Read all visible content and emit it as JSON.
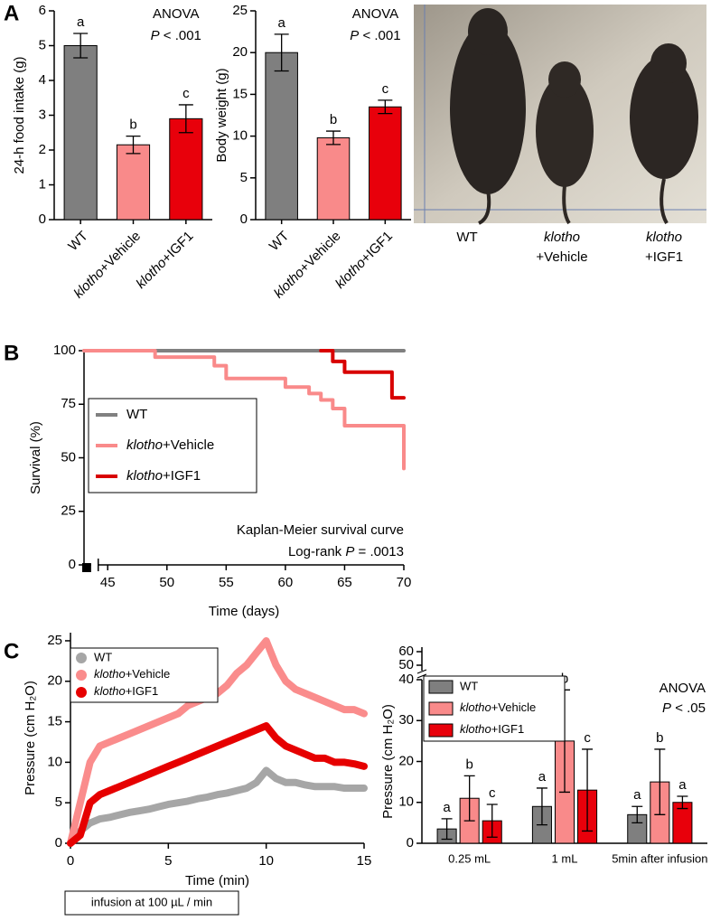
{
  "panel_labels": [
    "A",
    "B",
    "C"
  ],
  "photo": {
    "labels": [
      [
        "WT"
      ],
      [
        "klotho",
        "+Vehicle"
      ],
      [
        "klotho",
        "+IGF1"
      ]
    ]
  },
  "chart_data": [
    {
      "type": "bar",
      "y_label": "24-h food intake (g)",
      "categories": [
        "WT",
        "klotho+Vehicle",
        "klotho+IGF1"
      ],
      "values": [
        5.0,
        2.15,
        2.9
      ],
      "errors": [
        0.35,
        0.25,
        0.4
      ],
      "letters": [
        "a",
        "b",
        "c"
      ],
      "colors": [
        "#7f7f7f",
        "#f98a8a",
        "#e8000b"
      ],
      "ylim": [
        0,
        6
      ],
      "yticks": [
        0,
        1,
        2,
        3,
        4,
        5,
        6
      ],
      "annotations": [
        "ANOVA",
        "P < .001"
      ]
    },
    {
      "type": "bar",
      "y_label": "Body weight (g)",
      "categories": [
        "WT",
        "klotho+Vehicle",
        "klotho+IGF1"
      ],
      "values": [
        20,
        9.8,
        13.5
      ],
      "errors": [
        2.2,
        0.8,
        0.8
      ],
      "letters": [
        "a",
        "b",
        "c"
      ],
      "colors": [
        "#7f7f7f",
        "#f98a8a",
        "#e8000b"
      ],
      "ylim": [
        0,
        25
      ],
      "yticks": [
        0,
        5,
        10,
        15,
        20,
        25
      ],
      "annotations": [
        "ANOVA",
        "P < .001"
      ]
    },
    {
      "type": "line",
      "step": true,
      "x_label": "Time (days)",
      "y_label": "Survival (%)",
      "xlim": [
        43,
        70
      ],
      "xticks": [
        45,
        50,
        55,
        60,
        65,
        70
      ],
      "ylim": [
        0,
        100
      ],
      "yticks": [
        0,
        25,
        50,
        75,
        100
      ],
      "series": [
        {
          "name": "WT",
          "color": "#808080",
          "x": [
            43,
            70
          ],
          "values": [
            100,
            100
          ]
        },
        {
          "name": "klotho+Vehicle",
          "color": "#f98a8a",
          "x": [
            43,
            49,
            54,
            55,
            60,
            62,
            63,
            64,
            65,
            70
          ],
          "values": [
            100,
            97,
            93,
            87,
            83,
            80,
            77,
            73,
            65,
            45
          ]
        },
        {
          "name": "klotho+IGF1",
          "color": "#d80000",
          "x": [
            63,
            64,
            65,
            69,
            70
          ],
          "values": [
            100,
            95,
            90,
            78,
            78
          ]
        }
      ],
      "annotations": [
        "Kaplan-Meier survival curve",
        "Log-rank P = .0013"
      ]
    },
    {
      "type": "line",
      "step": false,
      "x_label": "Time (min)",
      "y_label": "Pressure (cm H₂O)",
      "xlim": [
        0,
        15
      ],
      "xticks": [
        0,
        5,
        10,
        15
      ],
      "ylim": [
        0,
        26
      ],
      "yticks": [
        0,
        5,
        10,
        15,
        20,
        25
      ],
      "x": [
        0,
        0.5,
        1,
        1.5,
        2,
        2.5,
        3,
        3.5,
        4,
        4.5,
        5,
        5.5,
        6,
        6.5,
        7,
        7.5,
        8,
        8.5,
        9,
        9.5,
        10,
        10.5,
        11,
        11.5,
        12,
        12.5,
        13,
        13.5,
        14,
        14.5,
        15
      ],
      "series": [
        {
          "name": "WT",
          "color": "#a6a6a6",
          "values": [
            0,
            1.5,
            2.5,
            3,
            3.2,
            3.5,
            3.8,
            4,
            4.2,
            4.5,
            4.8,
            5,
            5.2,
            5.5,
            5.7,
            6,
            6.2,
            6.5,
            6.8,
            7.5,
            9,
            8,
            7.5,
            7.5,
            7.2,
            7,
            7,
            7,
            6.8,
            6.8,
            6.8
          ]
        },
        {
          "name": "klotho+Vehicle",
          "color": "#fa8c8c",
          "values": [
            0,
            5,
            10,
            12,
            12.5,
            13,
            13.5,
            14,
            14.5,
            15,
            15.5,
            16,
            17,
            17.5,
            18,
            18.5,
            19.5,
            21,
            22,
            23.5,
            25,
            22,
            20,
            19,
            18.5,
            18,
            17.5,
            17,
            16.5,
            16.5,
            16
          ]
        },
        {
          "name": "klotho+IGF1",
          "color": "#e60000",
          "values": [
            0,
            1,
            5,
            6,
            6.5,
            7,
            7.5,
            8,
            8.5,
            9,
            9.5,
            10,
            10.5,
            11,
            11.5,
            12,
            12.5,
            13,
            13.5,
            14,
            14.5,
            13,
            12,
            11.5,
            11,
            10.5,
            10.5,
            10,
            10,
            9.8,
            9.5
          ]
        }
      ],
      "note": "infusion at 100 µL / min"
    },
    {
      "type": "grouped_bar",
      "y_label": "Pressure (cm H₂O)",
      "categories": [
        "0.25 mL",
        "1 mL",
        "5min after infusion"
      ],
      "ylim": [
        0,
        40
      ],
      "yticks": [
        0,
        10,
        20,
        30,
        40
      ],
      "break_ticks": [
        50,
        60
      ],
      "series": [
        {
          "name": "WT",
          "color": "#7f7f7f",
          "values": [
            3.5,
            9,
            7
          ],
          "errors": [
            2.5,
            4.5,
            2
          ],
          "letters": [
            "a",
            "a",
            "a"
          ]
        },
        {
          "name": "klotho+Vehicle",
          "color": "#f98a8a",
          "values": [
            11,
            25,
            15
          ],
          "errors": [
            5.5,
            12.5,
            8
          ],
          "letters": [
            "b",
            "b",
            "b"
          ]
        },
        {
          "name": "klotho+IGF1",
          "color": "#e8000b",
          "values": [
            5.5,
            13,
            10
          ],
          "errors": [
            4,
            10,
            1.5
          ],
          "letters": [
            "c",
            "c",
            "a"
          ]
        }
      ],
      "annotations": [
        "ANOVA",
        "P < .05"
      ]
    }
  ]
}
